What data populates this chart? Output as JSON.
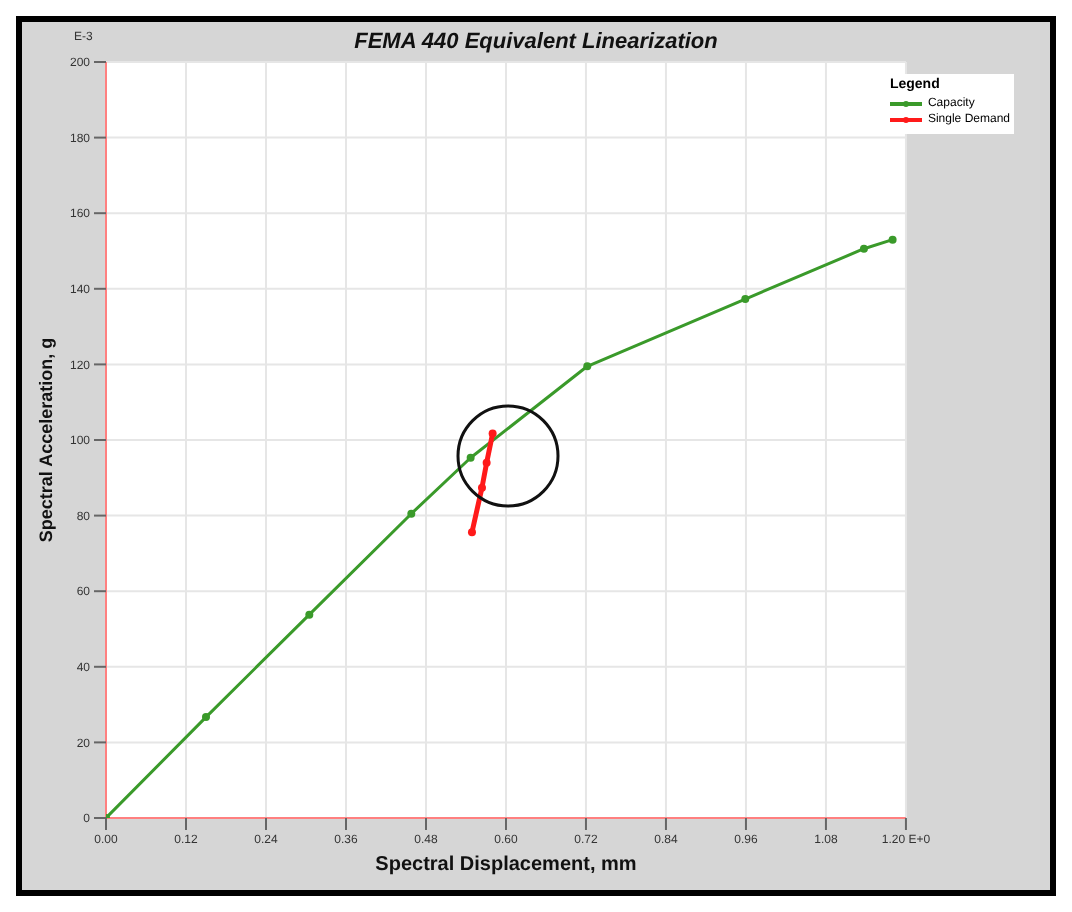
{
  "chart_data": {
    "type": "line",
    "title": "FEMA 440 Equivalent Linearization",
    "xlabel": "Spectral Displacement, mm",
    "ylabel": "Spectral Acceleration, g",
    "legend_title": "Legend",
    "annotations": [
      "E-3"
    ],
    "series": [
      {
        "name": "Capacity",
        "color": "#3a9a2a",
        "x": [
          0,
          0.15,
          0.305,
          0.458,
          0.547,
          0.722,
          0.959,
          1.137,
          1.18
        ],
        "values": [
          0,
          26.7,
          53.8,
          80.5,
          95.3,
          119.5,
          137.3,
          150.6,
          153
        ]
      },
      {
        "name": "Single Demand",
        "color": "#ff1a1a",
        "x": [
          0.549,
          0.564,
          0.571,
          0.58
        ],
        "values": [
          75.6,
          87.4,
          94,
          101.7
        ]
      }
    ],
    "xlim": [
      0,
      1.2
    ],
    "xticks": [
      {
        "value": 0,
        "label": "0.00"
      },
      {
        "value": 0.12,
        "label": "0.12"
      },
      {
        "value": 0.24,
        "label": "0.24"
      },
      {
        "value": 0.36,
        "label": "0.36"
      },
      {
        "value": 0.48,
        "label": "0.48"
      },
      {
        "value": 0.6,
        "label": "0.60"
      },
      {
        "value": 0.72,
        "label": "0.72"
      },
      {
        "value": 0.84,
        "label": "0.84"
      },
      {
        "value": 0.96,
        "label": "0.96"
      },
      {
        "value": 1.08,
        "label": "1.08"
      },
      {
        "value": 1.2,
        "label": "1.20 E+0"
      }
    ],
    "ylim": [
      0,
      200
    ],
    "yticks": [
      0,
      20,
      40,
      60,
      80,
      100,
      120,
      140,
      160,
      180,
      200
    ],
    "grid": true,
    "legend": "top right",
    "marker": "circle",
    "line_style": "solid"
  }
}
